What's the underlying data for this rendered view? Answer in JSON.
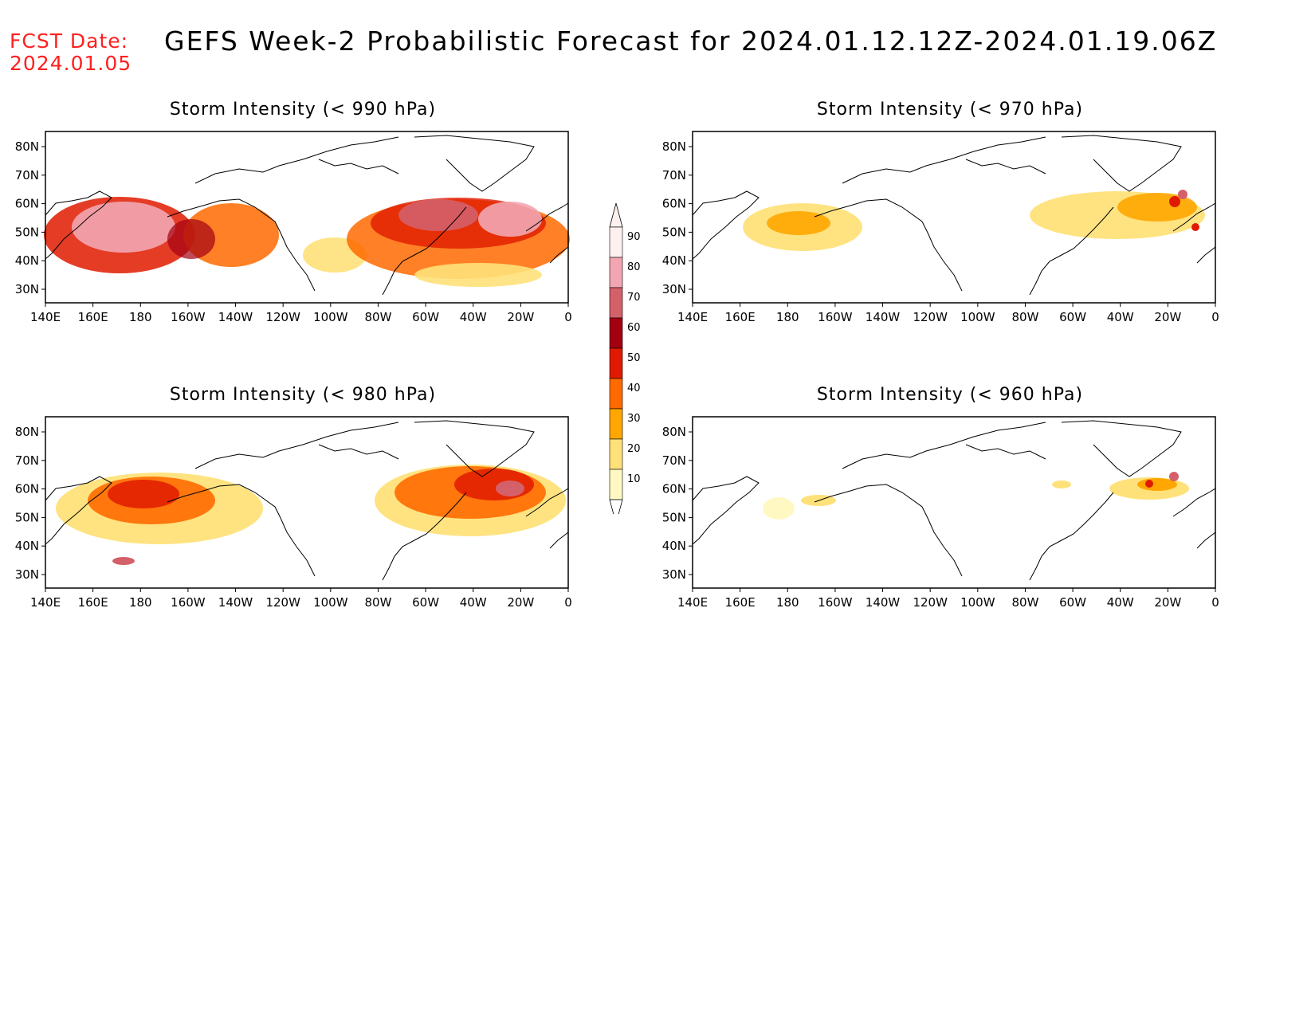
{
  "header": {
    "fcst_label": "FCST Date:",
    "fcst_date": "2024.01.05",
    "title": "GEFS Week-2 Probabilistic Forecast for 2024.01.12.12Z-2024.01.19.06Z"
  },
  "axes": {
    "lon_labels": [
      "140E",
      "160E",
      "180",
      "160W",
      "140W",
      "120W",
      "100W",
      "80W",
      "60W",
      "40W",
      "20W",
      "0"
    ],
    "lat_labels": [
      "80N",
      "70N",
      "60N",
      "50N",
      "40N",
      "30N"
    ]
  },
  "colorbar": {
    "ticks": [
      "90",
      "80",
      "70",
      "60",
      "50",
      "40",
      "30",
      "20",
      "10"
    ],
    "colors": [
      "#fff0f0",
      "#f2a6b2",
      "#d4606a",
      "#a30012",
      "#e01a00",
      "#ff6a00",
      "#ffa600",
      "#ffe17a",
      "#fff8c2"
    ]
  },
  "panels": [
    {
      "id": "p990",
      "title": "Storm Intensity (< 990 hPa)"
    },
    {
      "id": "p970",
      "title": "Storm Intensity (< 970 hPa)"
    },
    {
      "id": "p980",
      "title": "Storm Intensity (< 980 hPa)"
    },
    {
      "id": "p960",
      "title": "Storm Intensity (< 960 hPa)"
    }
  ]
}
